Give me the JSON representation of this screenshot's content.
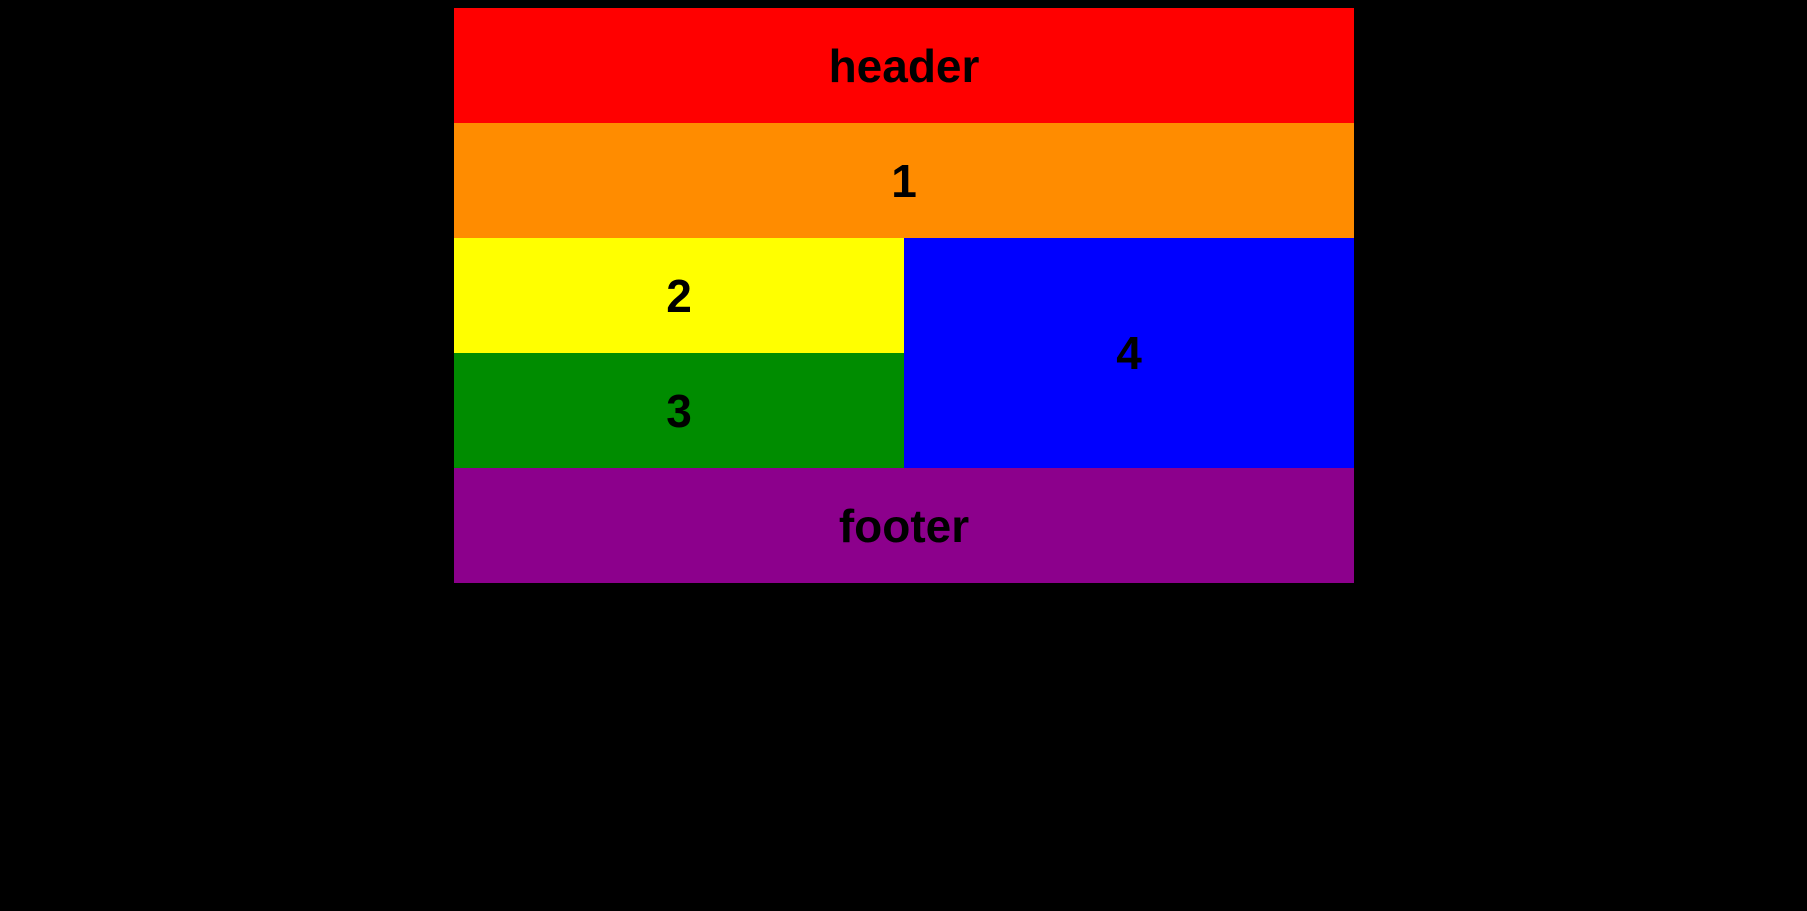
{
  "blocks": {
    "header": {
      "label": "header",
      "color": "#ff0000"
    },
    "one": {
      "label": "1",
      "color": "#ff8c00"
    },
    "two": {
      "label": "2",
      "color": "#ffff00"
    },
    "three": {
      "label": "3",
      "color": "#008c00"
    },
    "four": {
      "label": "4",
      "color": "#0000ff"
    },
    "footer": {
      "label": "footer",
      "color": "#8c008c"
    }
  }
}
